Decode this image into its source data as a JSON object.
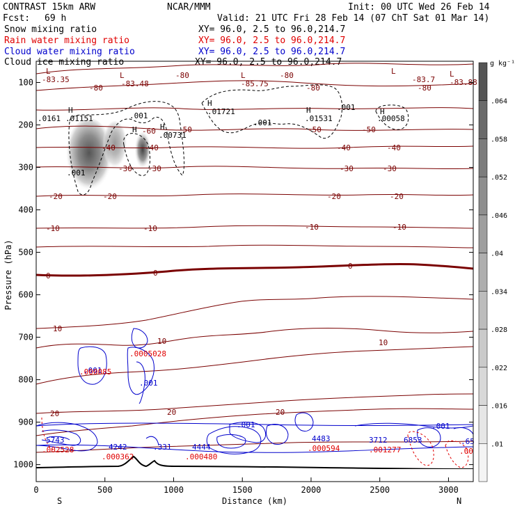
{
  "header": {
    "title": "CONTRAST 15km ARW",
    "org": "NCAR/MMM",
    "init": "Init: 00 UTC Wed 26 Feb 14",
    "fcst_label": "Fcst:",
    "fcst_value": "69 h",
    "valid": "Valid: 21 UTC Fri 28 Feb 14 (07 ChT Sat 01 Mar 14)",
    "lines": [
      {
        "name": "Snow mixing ratio",
        "xy": "XY=  96.0,  2.5 to  96.0,214.7",
        "color": "#000000"
      },
      {
        "name": "Rain water mixing ratio",
        "xy": "XY=  96.0,  2.5 to  96.0,214.7",
        "color": "#e00000"
      },
      {
        "name": "Cloud water mixing ratio",
        "xy": "XY=  96.0,  2.5 to  96.0,214.7",
        "color": "#0000cc"
      },
      {
        "name": "Cloud ice mixing ratio",
        "xy": "XY=  96.0,  2.5 to  96.0,214.7",
        "color": "#000000"
      }
    ]
  },
  "chart_data": {
    "type": "cross-section",
    "xlabel": "Distance (km)",
    "ylabel": "Pressure (hPa)",
    "xlim": [
      0,
      3180
    ],
    "ylim": [
      1040,
      50
    ],
    "x_ticks": [
      "0",
      "500",
      "1000",
      "1500",
      "2000",
      "2500",
      "3000"
    ],
    "y_ticks": [
      "100",
      "200",
      "300",
      "400",
      "500",
      "600",
      "700",
      "800",
      "900",
      "1000"
    ],
    "x_end_labels": {
      "left": "S",
      "right": "N"
    },
    "colorbar": {
      "unit": "g kg⁻¹",
      "levels": [
        ".01",
        ".016",
        ".022",
        ".028",
        ".034",
        ".04",
        ".046",
        ".052",
        ".058",
        ".064"
      ],
      "colors": [
        "#f4f4f4",
        "#e6e6e6",
        "#d8d8d8",
        "#cacaca",
        "#bcbcbc",
        "#aeaeae",
        "#9e9e9e",
        "#8e8e8e",
        "#7c7c7c",
        "#6a6a6a",
        "#555555"
      ]
    },
    "temperature_contours": {
      "color": "#7a0000",
      "levels_labeled": [
        "-83.35",
        "-83.48",
        "-85.75",
        "-83.7",
        "-83.88",
        "-80",
        "-80",
        "-80",
        "-80",
        "-80",
        "-60",
        "-50",
        "-50",
        "-50",
        "-40",
        "-40",
        "-40",
        "-40",
        "-30",
        "-30",
        "-30",
        "-30",
        "-20",
        "-20",
        "-20",
        "-20",
        "-10",
        "-10",
        "-10",
        "-10",
        "0",
        "0",
        "0",
        "10",
        "10",
        "10",
        "20",
        "20",
        "20"
      ]
    },
    "snow_labels": [
      ".0161",
      ".01151",
      ".001",
      ".01721",
      ".001",
      ".01531",
      ".001",
      ".00058",
      ".00731",
      ".001"
    ],
    "snow_H": [
      "H",
      "H",
      "H",
      "H",
      "H",
      "H"
    ],
    "cloud_water_labels": [
      ".001",
      ".001",
      ".001",
      ".001",
      ".331",
      "5743",
      "4242",
      "4444",
      "4483",
      "3712",
      "6853",
      ".65"
    ],
    "rain_labels": [
      ".002528",
      ".000362",
      ".000480",
      ".000594",
      ".001277",
      ".00",
      ".0005028",
      ".000085"
    ],
    "cloud_ice_L_labels": [
      "L",
      "L",
      "L",
      "L",
      "L"
    ],
    "max_snow_center_km": [
      390,
      780
    ],
    "max_snow_value": 0.064
  }
}
